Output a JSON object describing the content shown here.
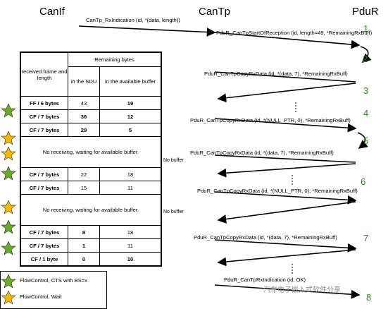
{
  "headers": {
    "canif": "CanIf",
    "cantp": "CanTp",
    "pdur": "PduR"
  },
  "messages": [
    {
      "text": "CanTp_RxIndication (id, *(data, length))"
    },
    {
      "text": "PduR_CanTpStartOfReception (id, length=49, *RemainingRxBuff)"
    },
    {
      "text": "PduR_CanTpCopyRxData (id, *(data, 7), *RemainingRxBuff)"
    },
    {
      "text": "PduR_CanTpCopyRxData (id, *(NULL_PTR, 0), *RemainingRxBuff)"
    },
    {
      "text": "PduR_CanTpCopyRxData (id, *(data, 7), *RemainingRxBuff)"
    },
    {
      "text": "PduR_CanTpCopyRxData (id, *(NULL_PTR, 0), *RemainingRxBuff)"
    },
    {
      "text": "PduR_CanTpCopyRxData (id, *(data, 7), *RemainingRxBuff)"
    },
    {
      "text": "PduR_CanTpRxIndication (id, OK)"
    }
  ],
  "step_numbers": [
    "1",
    "2",
    "3",
    "4",
    "5",
    "6",
    "7",
    "8"
  ],
  "table": {
    "col1_header": "received frame and length",
    "remaining_header": "Remaining bytes",
    "sdu_header": "in the SDU",
    "buffer_header": "in the available buffer",
    "rows": [
      {
        "frame": "FF / 6 bytes",
        "sdu": "43",
        "buffer": "19"
      },
      {
        "frame": "CF / 7 bytes",
        "sdu": "36",
        "buffer": "12"
      },
      {
        "frame": "CF / 7 bytes",
        "sdu": "29",
        "buffer": "5"
      },
      {
        "span": "No receiving, waiting for available buffer."
      },
      {
        "frame": "CF / 7 bytes",
        "sdu": "22",
        "buffer": "18"
      },
      {
        "frame": "CF / 7 bytes",
        "sdu": "15",
        "buffer": "11"
      },
      {
        "span": "No receiving, waiting for available buffer."
      },
      {
        "frame": "CF / 7 bytes",
        "sdu": "8",
        "buffer": "18"
      },
      {
        "frame": "CF / 7 bytes",
        "sdu": "1",
        "buffer": "11"
      },
      {
        "frame": "CF / 1 byte",
        "sdu": "0",
        "buffer": "10"
      }
    ]
  },
  "side_labels": {
    "no_buffer_1": "No buffer",
    "no_buffer_2": "No buffer"
  },
  "legend": {
    "cts": "FlowControl, CTS with BS=x",
    "wait": "FlowControl, Wait"
  },
  "watermark": "汽车电子嵌入式软件分享",
  "colors": {
    "green_star": "#6aaa2a",
    "orange_star": "#f5b800",
    "step_green": "#2e8b1a"
  }
}
